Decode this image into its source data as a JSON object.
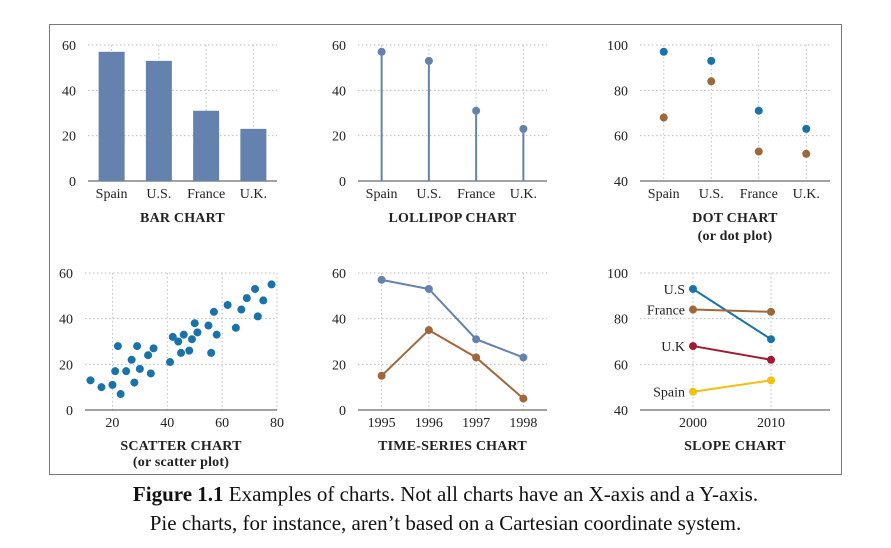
{
  "colors": {
    "blue": "#6482ad",
    "teal": "#1a73a8",
    "brown": "#a0683a",
    "red": "#a11a35",
    "yellow": "#f2c011"
  },
  "caption": {
    "label": "Figure 1.1",
    "line1": " Examples of charts. Not all charts have an X-axis and a Y-axis.",
    "line2": "Pie charts, for instance, aren’t based on a Cartesian coordinate system."
  },
  "chart_data": [
    {
      "type": "bar",
      "title": "BAR CHART",
      "categories": [
        "Spain",
        "U.S.",
        "France",
        "U.K."
      ],
      "values": [
        57,
        53,
        31,
        23
      ],
      "ylim": [
        0,
        60
      ],
      "yticks": [
        0,
        20,
        40,
        60
      ],
      "grid": true
    },
    {
      "type": "lollipop",
      "title": "LOLLIPOP CHART",
      "categories": [
        "Spain",
        "U.S.",
        "France",
        "U.K."
      ],
      "values": [
        57,
        53,
        31,
        23
      ],
      "ylim": [
        0,
        60
      ],
      "yticks": [
        0,
        20,
        40,
        60
      ],
      "grid": true
    },
    {
      "type": "dot",
      "title": "DOT CHART",
      "subtitle": "(or dot plot)",
      "categories": [
        "Spain",
        "U.S.",
        "France",
        "U.K."
      ],
      "series": [
        {
          "values": [
            97,
            93,
            71,
            63
          ]
        },
        {
          "values": [
            68,
            84,
            53,
            52
          ]
        }
      ],
      "ylim": [
        40,
        100
      ],
      "yticks": [
        40,
        60,
        80,
        100
      ],
      "grid": true
    },
    {
      "type": "scatter",
      "title": "SCATTER CHART",
      "subtitle": "(or scatter plot)",
      "points": [
        [
          12,
          13
        ],
        [
          16,
          10
        ],
        [
          20,
          11
        ],
        [
          21,
          17
        ],
        [
          22,
          28
        ],
        [
          23,
          7
        ],
        [
          25,
          17
        ],
        [
          27,
          22
        ],
        [
          28,
          12
        ],
        [
          29,
          28
        ],
        [
          30,
          18
        ],
        [
          33,
          24
        ],
        [
          34,
          16
        ],
        [
          35,
          27
        ],
        [
          41,
          21
        ],
        [
          42,
          32
        ],
        [
          44,
          30
        ],
        [
          45,
          25
        ],
        [
          46,
          33
        ],
        [
          48,
          26
        ],
        [
          49,
          31
        ],
        [
          50,
          38
        ],
        [
          51,
          34
        ],
        [
          55,
          37
        ],
        [
          56,
          25
        ],
        [
          57,
          43
        ],
        [
          58,
          33
        ],
        [
          62,
          46
        ],
        [
          65,
          36
        ],
        [
          67,
          44
        ],
        [
          69,
          49
        ],
        [
          72,
          53
        ],
        [
          73,
          41
        ],
        [
          75,
          48
        ],
        [
          78,
          55
        ]
      ],
      "xlim": [
        10,
        80
      ],
      "xticks": [
        20,
        40,
        60,
        80
      ],
      "ylim": [
        0,
        60
      ],
      "yticks": [
        0,
        20,
        40,
        60
      ],
      "grid": true
    },
    {
      "type": "line",
      "title": "TIME-SERIES CHART",
      "x": [
        "1995",
        "1996",
        "1997",
        "1998"
      ],
      "series": [
        {
          "values": [
            57,
            53,
            31,
            23
          ]
        },
        {
          "values": [
            15,
            35,
            23,
            5
          ]
        }
      ],
      "ylim": [
        0,
        60
      ],
      "yticks": [
        0,
        20,
        40,
        60
      ],
      "grid": true
    },
    {
      "type": "slope",
      "title": "SLOPE CHART",
      "x": [
        "2000",
        "2010"
      ],
      "series": [
        {
          "name": "U.S",
          "values": [
            93,
            71
          ]
        },
        {
          "name": "France",
          "values": [
            84,
            83
          ]
        },
        {
          "name": "U.K",
          "values": [
            68,
            62
          ]
        },
        {
          "name": "Spain",
          "values": [
            48,
            53
          ]
        }
      ],
      "ylim": [
        40,
        100
      ],
      "yticks": [
        40,
        60,
        80,
        100
      ],
      "grid": true
    }
  ]
}
